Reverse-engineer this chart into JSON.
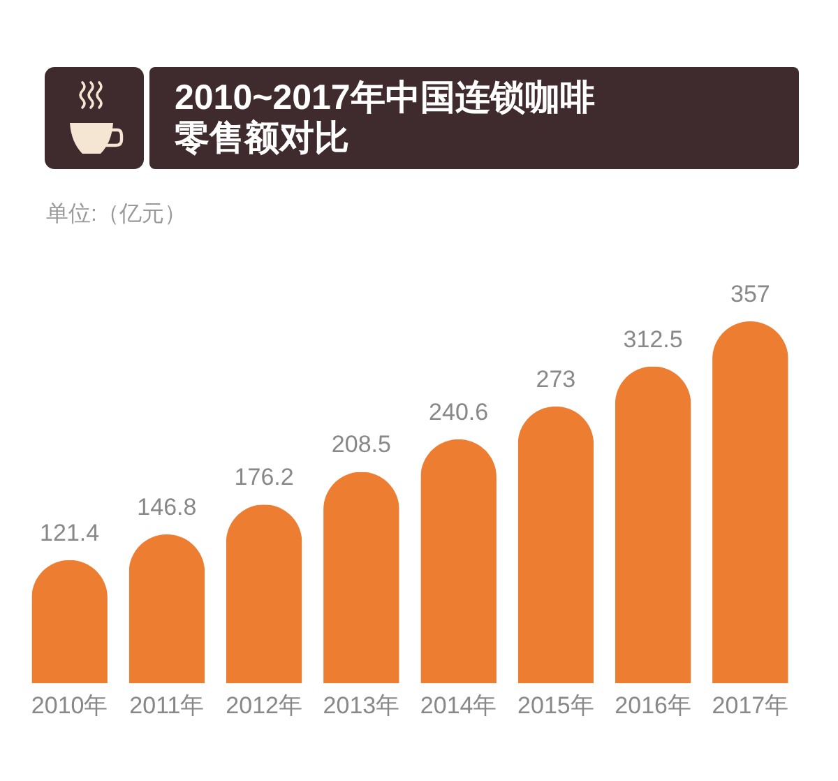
{
  "chart_data": {
    "type": "bar",
    "title": "2010~2017年中国连锁咖啡零售额对比",
    "subtitle": "单位:（亿元）",
    "categories": [
      "2010年",
      "2011年",
      "2012年",
      "2013年",
      "2014年",
      "2015年",
      "2016年",
      "2017年"
    ],
    "values": [
      121.4,
      146.8,
      176.2,
      208.5,
      240.6,
      273,
      312.5,
      357
    ],
    "color": "#ed7d31",
    "data_labels": true
  }
}
